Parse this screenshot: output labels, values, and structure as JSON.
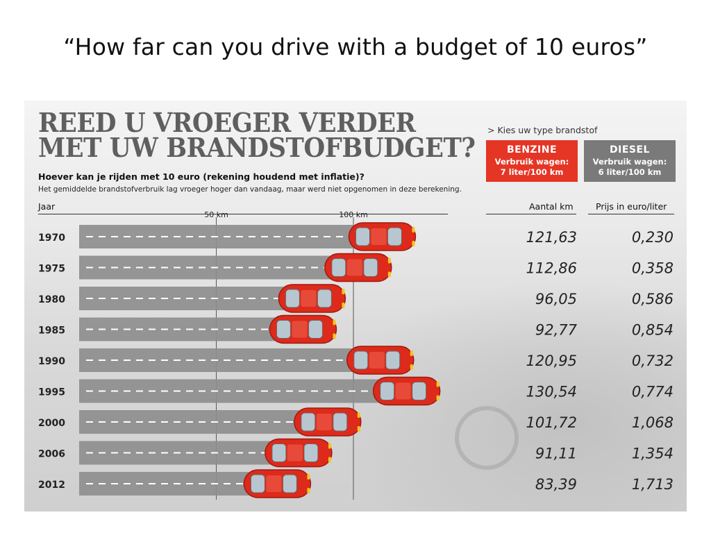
{
  "slide": {
    "title": "“How far can you drive with a budget of 10 euros”"
  },
  "infographic": {
    "headline_line1": "REED U VROEGER VERDER",
    "headline_line2": "MET UW BRANDSTOFBUDGET?",
    "subtitle": "Hoever kan je rijden met 10 euro (rekening houdend met inflatie)?",
    "note": "Het gemiddelde brandstofverbruik lag vroeger hoger dan vandaag, maar werd niet opgenomen in deze berekening.",
    "fuel_prompt": "> Kies uw type brandstof",
    "fuel_options": [
      {
        "name": "BENZINE",
        "line1": "Verbruik wagen:",
        "line2": "7 liter/100 km",
        "color": "#e53525"
      },
      {
        "name": "DIESEL",
        "line1": "Verbruik wagen:",
        "line2": "6 liter/100 km",
        "color": "#7a7a7a"
      }
    ],
    "column_headers": {
      "year": "Jaar",
      "distance": "Aantal km",
      "price": "Prijs in euro/liter"
    }
  },
  "chart_data": {
    "type": "bar",
    "orientation": "horizontal",
    "categories": [
      "1970",
      "1975",
      "1980",
      "1985",
      "1990",
      "1995",
      "2000",
      "2006",
      "2012"
    ],
    "series": [
      {
        "name": "Aantal km",
        "values": [
          121.63,
          112.86,
          96.05,
          92.77,
          120.95,
          130.54,
          101.72,
          91.11,
          83.39
        ]
      }
    ],
    "value_labels": [
      "121,63",
      "112,86",
      "96,05",
      "92,77",
      "120,95",
      "130,54",
      "101,72",
      "91,11",
      "83,39"
    ],
    "price_labels": [
      "0,230",
      "0,358",
      "0,586",
      "0,854",
      "0,732",
      "0,774",
      "1,068",
      "1,354",
      "1,713"
    ],
    "reference_lines": [
      {
        "value": 50,
        "label": "50 km"
      },
      {
        "value": 100,
        "label": "100 km"
      }
    ],
    "xlim": [
      0,
      150
    ],
    "bar_color": "#8e8e8e",
    "marker_color": "#dd2a1b"
  }
}
